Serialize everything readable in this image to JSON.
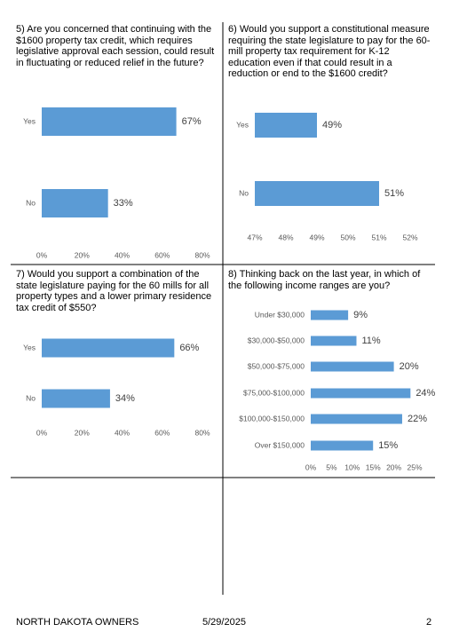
{
  "chart_data": [
    {
      "type": "hbar",
      "title": "5) Are you concerned that continuing with the $1600 property tax credit, which requires legislative approval each session, could result in fluctuating or reduced relief in the future?",
      "categories": [
        "Yes",
        "No"
      ],
      "values": [
        67,
        33
      ],
      "value_labels": [
        "67%",
        "33%"
      ],
      "color": "#5b9bd5",
      "xlim": [
        0,
        80
      ],
      "xticks": [
        {
          "value": 0,
          "label": "0%"
        },
        {
          "value": 20,
          "label": "20%"
        },
        {
          "value": 40,
          "label": "40%"
        },
        {
          "value": 60,
          "label": "60%"
        },
        {
          "value": 80,
          "label": "80%"
        }
      ]
    },
    {
      "type": "hbar",
      "title": "6) Would you support a constitutional measure requiring the state legislature to pay for the 60-mill property tax requirement for K-12 education even if that could result in a reduction or end to the $1600 credit?",
      "categories": [
        "Yes",
        "No"
      ],
      "values": [
        49,
        51
      ],
      "value_labels": [
        "49%",
        "51%"
      ],
      "color": "#5b9bd5",
      "xlim": [
        47,
        52
      ],
      "xticks": [
        {
          "value": 47,
          "label": "47%"
        },
        {
          "value": 48,
          "label": "48%"
        },
        {
          "value": 49,
          "label": "49%"
        },
        {
          "value": 50,
          "label": "50%"
        },
        {
          "value": 51,
          "label": "51%"
        },
        {
          "value": 52,
          "label": "52%"
        }
      ]
    },
    {
      "type": "hbar",
      "title": "7) Would you support a combination of the state legislature paying for the 60 mills for all property types and a lower primary residence tax credit of $550?",
      "categories": [
        "Yes",
        "No"
      ],
      "values": [
        66,
        34
      ],
      "value_labels": [
        "66%",
        "34%"
      ],
      "color": "#5b9bd5",
      "xlim": [
        0,
        80
      ],
      "xticks": [
        {
          "value": 0,
          "label": "0%"
        },
        {
          "value": 20,
          "label": "20%"
        },
        {
          "value": 40,
          "label": "40%"
        },
        {
          "value": 60,
          "label": "60%"
        },
        {
          "value": 80,
          "label": "80%"
        }
      ]
    },
    {
      "type": "hbar",
      "title": "8) Thinking back on the last year, in which of the following income ranges are you?",
      "categories": [
        "Under $30,000",
        "$30,000-$50,000",
        "$50,000-$75,000",
        "$75,000-$100,000",
        "$100,000-$150,000",
        "Over $150,000"
      ],
      "values": [
        9,
        11,
        20,
        24,
        22,
        15
      ],
      "value_labels": [
        "9%",
        "11%",
        "20%",
        "24%",
        "22%",
        "15%"
      ],
      "color": "#5b9bd5",
      "xlim": [
        0,
        25
      ],
      "xticks": [
        {
          "value": 0,
          "label": "0%"
        },
        {
          "value": 5,
          "label": "5%"
        },
        {
          "value": 10,
          "label": "10%"
        },
        {
          "value": 15,
          "label": "15%"
        },
        {
          "value": 20,
          "label": "20%"
        },
        {
          "value": 25,
          "label": "25%"
        }
      ]
    }
  ],
  "footer": {
    "left": "NORTH DAKOTA OWNERS",
    "center": "5/29/2025",
    "page": "2"
  }
}
